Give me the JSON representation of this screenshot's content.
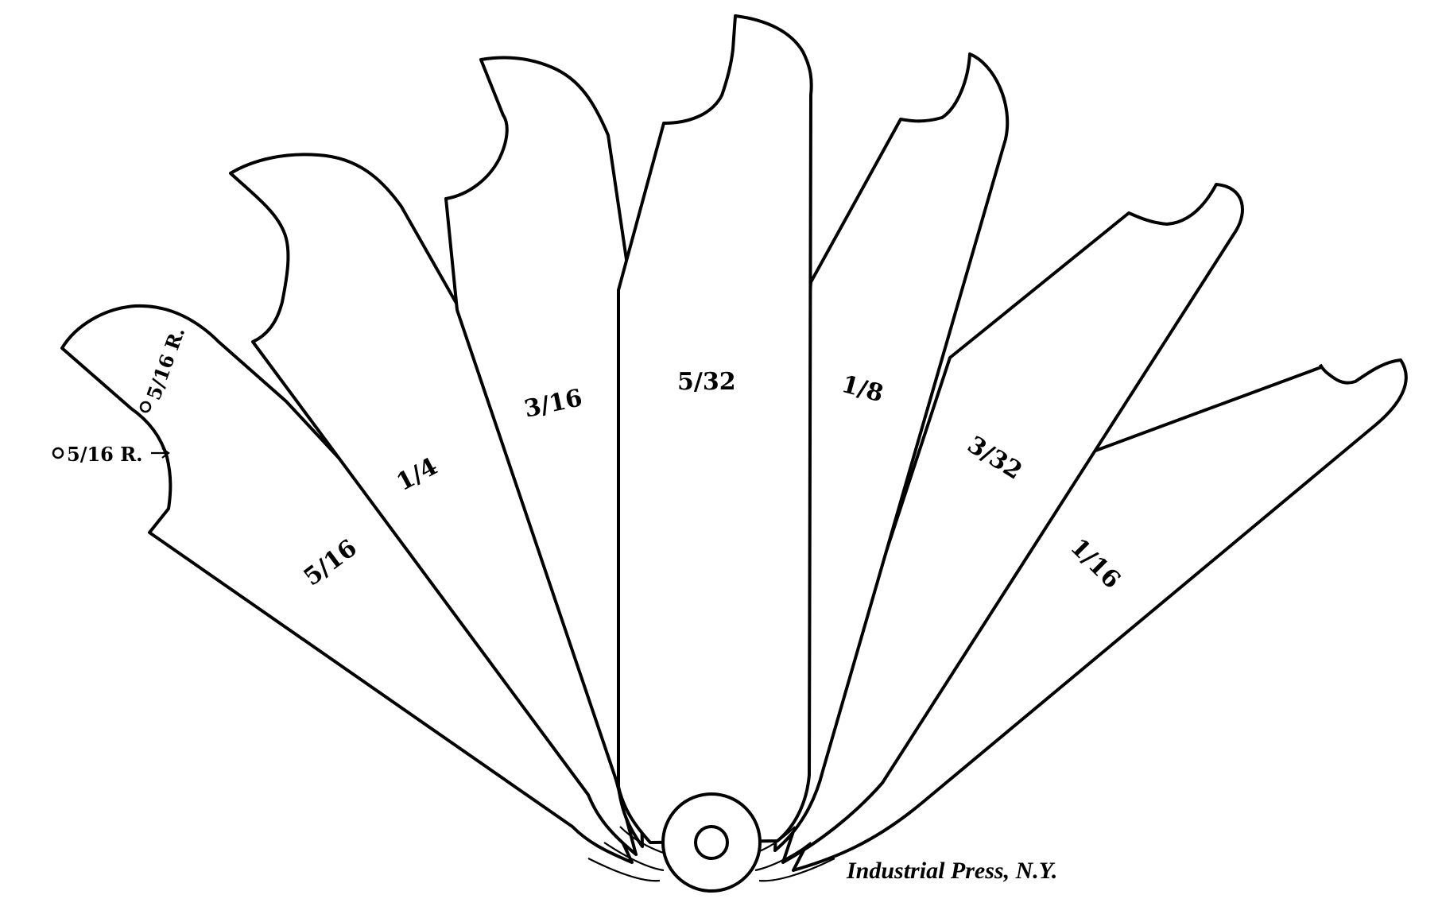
{
  "blades": [
    {
      "id": "5-16",
      "label": "5/16"
    },
    {
      "id": "1-4",
      "label": "1/4"
    },
    {
      "id": "3-16",
      "label": "3/16"
    },
    {
      "id": "5-32",
      "label": "5/32"
    },
    {
      "id": "1-8",
      "label": "1/8"
    },
    {
      "id": "3-32",
      "label": "3/32"
    },
    {
      "id": "1-16",
      "label": "1/16"
    }
  ],
  "annotations": {
    "radius_top": "5/16 R.",
    "radius_side": "5/16 R."
  },
  "credit": "Industrial Press, N.Y."
}
